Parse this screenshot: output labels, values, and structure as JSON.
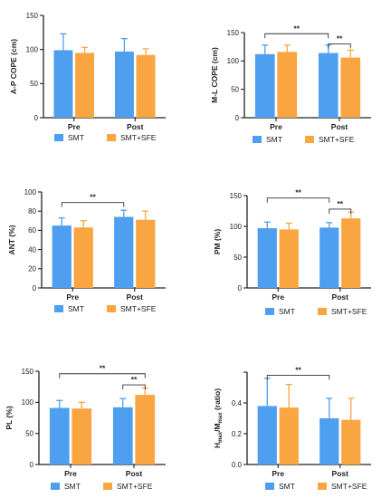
{
  "colors": {
    "smt": "#4f9ff0",
    "smt_sfe": "#f9a542",
    "axis": "#222222",
    "bracket": "#333333"
  },
  "chart_data": [
    {
      "type": "bar",
      "ylabel": "A-P COPE (cm)",
      "categories": [
        "Pre",
        "Post"
      ],
      "ylim": [
        0,
        150
      ],
      "yticks": [
        0,
        50,
        100,
        150
      ],
      "series": [
        {
          "name": "SMT",
          "values": [
            99,
            97
          ],
          "errors": [
            24,
            19
          ]
        },
        {
          "name": "SMT+SFE",
          "values": [
            95,
            92
          ],
          "errors": [
            8,
            9
          ]
        }
      ],
      "significance": []
    },
    {
      "type": "bar",
      "ylabel": "M-L COPE (cm)",
      "categories": [
        "Pre",
        "Post"
      ],
      "ylim": [
        0,
        150
      ],
      "yticks": [
        0,
        50,
        100,
        150
      ],
      "series": [
        {
          "name": "SMT",
          "values": [
            112,
            114
          ],
          "errors": [
            16,
            14
          ]
        },
        {
          "name": "SMT+SFE",
          "values": [
            116,
            106
          ],
          "errors": [
            12,
            13
          ]
        }
      ],
      "significance": [
        {
          "from": [
            0,
            0
          ],
          "to": [
            1,
            0
          ],
          "y": 148,
          "label": "**"
        },
        {
          "from": [
            1,
            0
          ],
          "to": [
            1,
            1
          ],
          "y": 130,
          "label": "**"
        }
      ]
    },
    {
      "type": "bar",
      "ylabel": "ANT (%)",
      "categories": [
        "Pre",
        "Post"
      ],
      "ylim": [
        0,
        100
      ],
      "yticks": [
        0,
        20,
        40,
        60,
        80,
        100
      ],
      "series": [
        {
          "name": "SMT",
          "values": [
            65,
            74
          ],
          "errors": [
            8,
            7
          ]
        },
        {
          "name": "SMT+SFE",
          "values": [
            63,
            71
          ],
          "errors": [
            7,
            9
          ]
        }
      ],
      "significance": [
        {
          "from": [
            0,
            0
          ],
          "to": [
            1,
            0
          ],
          "y": 89,
          "label": "**"
        }
      ]
    },
    {
      "type": "bar",
      "ylabel": "PM (%)",
      "categories": [
        "Pre",
        "Post"
      ],
      "ylim": [
        0,
        150
      ],
      "yticks": [
        0,
        50,
        100,
        150
      ],
      "series": [
        {
          "name": "SMT",
          "values": [
            97,
            98
          ],
          "errors": [
            10,
            8
          ]
        },
        {
          "name": "SMT+SFE",
          "values": [
            95,
            113
          ],
          "errors": [
            10,
            10
          ]
        }
      ],
      "significance": [
        {
          "from": [
            0,
            0
          ],
          "to": [
            1,
            0
          ],
          "y": 146,
          "label": "**"
        },
        {
          "from": [
            1,
            0
          ],
          "to": [
            1,
            1
          ],
          "y": 128,
          "label": "**"
        }
      ]
    },
    {
      "type": "bar",
      "ylabel": "PL (%)",
      "categories": [
        "Pre",
        "Post"
      ],
      "ylim": [
        0,
        150
      ],
      "yticks": [
        0,
        50,
        100,
        150
      ],
      "series": [
        {
          "name": "SMT",
          "values": [
            91,
            92
          ],
          "errors": [
            12,
            14
          ]
        },
        {
          "name": "SMT+SFE",
          "values": [
            90,
            112
          ],
          "errors": [
            10,
            11
          ]
        }
      ],
      "significance": [
        {
          "from": [
            0,
            0
          ],
          "to": [
            1,
            1
          ],
          "y": 146,
          "label": "**"
        },
        {
          "from": [
            1,
            0
          ],
          "to": [
            1,
            1
          ],
          "y": 128,
          "label": "**"
        }
      ]
    },
    {
      "type": "bar",
      "ylabel": "Hmax/Mmax (ratio)",
      "ylabel_parts": {
        "h": "H",
        "h_sub": "max",
        "sep": "/M",
        "m_sub": "max",
        "tail": " (ratio)"
      },
      "categories": [
        "Pre",
        "Post"
      ],
      "ylim": [
        0,
        0.6
      ],
      "yticks": [
        0.0,
        0.2,
        0.4,
        0.6
      ],
      "ytick_labels": [
        "0.0",
        "0.2",
        "0.4",
        ""
      ],
      "series": [
        {
          "name": "SMT",
          "values": [
            0.38,
            0.3
          ],
          "errors": [
            0.18,
            0.13
          ]
        },
        {
          "name": "SMT+SFE",
          "values": [
            0.37,
            0.29
          ],
          "errors": [
            0.15,
            0.14
          ]
        }
      ],
      "significance": [
        {
          "from": [
            0,
            0
          ],
          "to": [
            1,
            0
          ],
          "y": 0.58,
          "label": "**"
        }
      ]
    }
  ]
}
